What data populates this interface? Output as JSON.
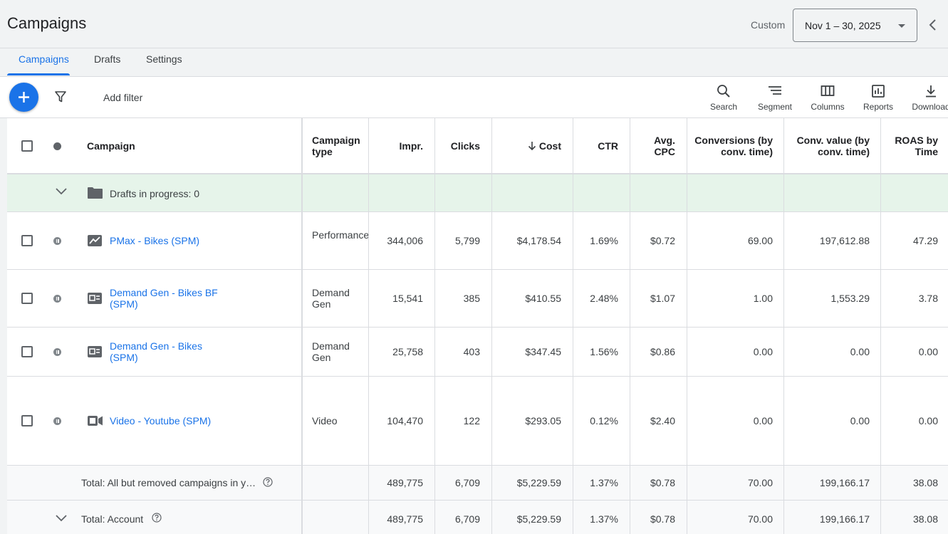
{
  "header": {
    "title": "Campaigns",
    "range_label": "Custom",
    "date_range": "Nov 1 – 30, 2025"
  },
  "tabs": [
    {
      "label": "Campaigns",
      "active": true
    },
    {
      "label": "Drafts",
      "active": false
    },
    {
      "label": "Settings",
      "active": false
    }
  ],
  "toolbar": {
    "add_filter": "Add filter",
    "tools": [
      {
        "label": "Search",
        "icon": "search-icon"
      },
      {
        "label": "Segment",
        "icon": "segment-icon"
      },
      {
        "label": "Columns",
        "icon": "columns-icon"
      },
      {
        "label": "Reports",
        "icon": "reports-icon"
      },
      {
        "label": "Download",
        "icon": "download-icon"
      }
    ]
  },
  "columns": {
    "campaign": "Campaign",
    "type": "Campaign type",
    "impr": "Impr.",
    "clicks": "Clicks",
    "cost": "Cost",
    "ctr": "CTR",
    "avg_cpc": "Avg. CPC",
    "conversions": "Conversions (by conv. time)",
    "conv_value": "Conv. value (by conv. time)",
    "roas": "ROAS by Time"
  },
  "drafts": {
    "label": "Drafts in progress: 0"
  },
  "campaigns": [
    {
      "name": "PMax - Bikes (SPM)",
      "type": "Performance Max",
      "icon": "pmax-icon",
      "impr": "344,006",
      "clicks": "5,799",
      "cost": "$4,178.54",
      "ctr": "1.69%",
      "avg_cpc": "$0.72",
      "conversions": "69.00",
      "conv_value": "197,612.88",
      "roas": "47.29"
    },
    {
      "name": "Demand Gen - Bikes BF (SPM)",
      "type": "Demand Gen",
      "icon": "demand-gen-icon",
      "impr": "15,541",
      "clicks": "385",
      "cost": "$410.55",
      "ctr": "2.48%",
      "avg_cpc": "$1.07",
      "conversions": "1.00",
      "conv_value": "1,553.29",
      "roas": "3.78"
    },
    {
      "name": "Demand Gen - Bikes (SPM)",
      "type": "Demand Gen",
      "icon": "demand-gen-icon",
      "impr": "25,758",
      "clicks": "403",
      "cost": "$347.45",
      "ctr": "1.56%",
      "avg_cpc": "$0.86",
      "conversions": "0.00",
      "conv_value": "0.00",
      "roas": "0.00"
    },
    {
      "name": "Video - Youtube (SPM)",
      "type": "Video",
      "icon": "video-icon",
      "impr": "104,470",
      "clicks": "122",
      "cost": "$293.05",
      "ctr": "0.12%",
      "avg_cpc": "$2.40",
      "conversions": "0.00",
      "conv_value": "0.00",
      "roas": "0.00"
    }
  ],
  "totals": [
    {
      "label": "Total: All but removed campaigns in y…",
      "impr": "489,775",
      "clicks": "6,709",
      "cost": "$5,229.59",
      "ctr": "1.37%",
      "avg_cpc": "$0.78",
      "conversions": "70.00",
      "conv_value": "199,166.17",
      "roas": "38.08"
    },
    {
      "label": "Total: Account",
      "impr": "489,775",
      "clicks": "6,709",
      "cost": "$5,229.59",
      "ctr": "1.37%",
      "avg_cpc": "$0.78",
      "conversions": "70.00",
      "conv_value": "199,166.17",
      "roas": "38.08"
    }
  ],
  "colors": {
    "accent": "#1a73e8",
    "draft_row": "#e6f4ea",
    "total_row": "#f8f9fa"
  }
}
